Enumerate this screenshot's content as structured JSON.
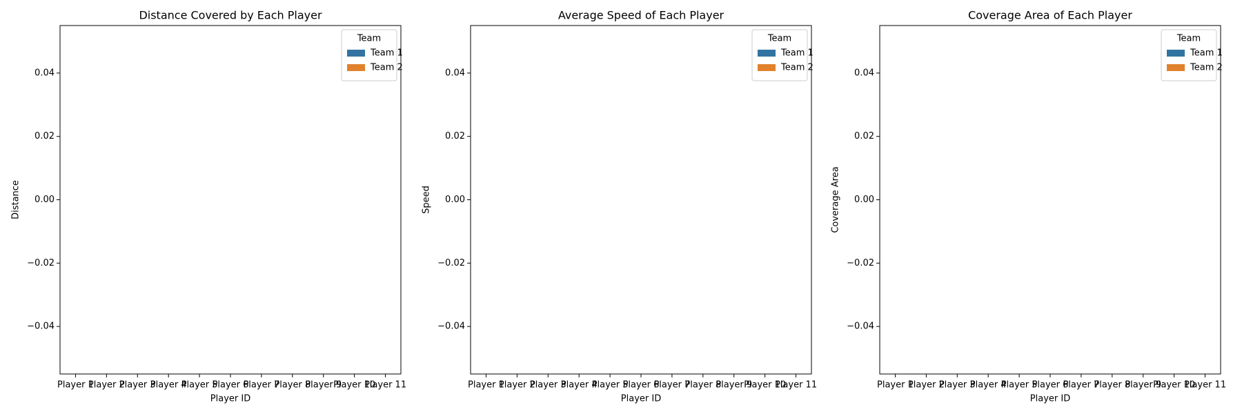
{
  "chart_data": [
    {
      "type": "bar",
      "title": "Distance Covered by Each Player",
      "xlabel": "Player ID",
      "ylabel": "Distance",
      "categories": [
        "Player 1",
        "Player 2",
        "Player 3",
        "Player 4",
        "Player 5",
        "Player 6",
        "Player 7",
        "Player 8",
        "Player 9",
        "Player 10",
        "Player 11"
      ],
      "series": [
        {
          "name": "Team 1",
          "color": "#3274a1",
          "values": [
            0,
            0,
            0,
            0,
            0,
            0,
            0,
            0,
            0,
            0,
            0
          ]
        },
        {
          "name": "Team 2",
          "color": "#e1812c",
          "values": [
            0,
            0,
            0,
            0,
            0,
            0,
            0,
            0,
            0,
            0,
            0
          ]
        }
      ],
      "legend_title": "Team",
      "legend": "upper right",
      "ylim": [
        -0.055,
        0.055
      ],
      "yticks": [
        {
          "value": -0.04,
          "label": "−0.04"
        },
        {
          "value": -0.02,
          "label": "−0.02"
        },
        {
          "value": 0,
          "label": "0.00"
        },
        0.02,
        0.04
      ]
    },
    {
      "type": "bar",
      "title": "Average Speed of Each Player",
      "xlabel": "Player ID",
      "ylabel": "Speed",
      "categories": [
        "Player 1",
        "Player 2",
        "Player 3",
        "Player 4",
        "Player 5",
        "Player 6",
        "Player 7",
        "Player 8",
        "Player 9",
        "Player 10",
        "Player 11"
      ],
      "series": [
        {
          "name": "Team 1",
          "color": "#3274a1",
          "values": [
            0,
            0,
            0,
            0,
            0,
            0,
            0,
            0,
            0,
            0,
            0
          ]
        },
        {
          "name": "Team 2",
          "color": "#e1812c",
          "values": [
            0,
            0,
            0,
            0,
            0,
            0,
            0,
            0,
            0,
            0,
            0
          ]
        }
      ],
      "legend_title": "Team",
      "legend": "upper right",
      "ylim": [
        -0.055,
        0.055
      ],
      "yticks": [
        {
          "value": -0.04,
          "label": "−0.04"
        },
        {
          "value": -0.02,
          "label": "−0.02"
        },
        {
          "value": 0,
          "label": "0.00"
        },
        0.02,
        0.04
      ]
    },
    {
      "type": "bar",
      "title": "Coverage Area of Each Player",
      "xlabel": "Player ID",
      "ylabel": "Coverage Area",
      "categories": [
        "Player 1",
        "Player 2",
        "Player 3",
        "Player 4",
        "Player 5",
        "Player 6",
        "Player 7",
        "Player 8",
        "Player 9",
        "Player 10",
        "Player 11"
      ],
      "series": [
        {
          "name": "Team 1",
          "color": "#3274a1",
          "values": [
            0,
            0,
            0,
            0,
            0,
            0,
            0,
            0,
            0,
            0,
            0
          ]
        },
        {
          "name": "Team 2",
          "color": "#e1812c",
          "values": [
            0,
            0,
            0,
            0,
            0,
            0,
            0,
            0,
            0,
            0,
            0
          ]
        }
      ],
      "legend_title": "Team",
      "legend": "upper right",
      "ylim": [
        -0.055,
        0.055
      ],
      "yticks": [
        {
          "value": -0.04,
          "label": "−0.04"
        },
        {
          "value": -0.02,
          "label": "−0.02"
        },
        {
          "value": 0,
          "label": "0.00"
        },
        0.02,
        0.04
      ]
    }
  ]
}
